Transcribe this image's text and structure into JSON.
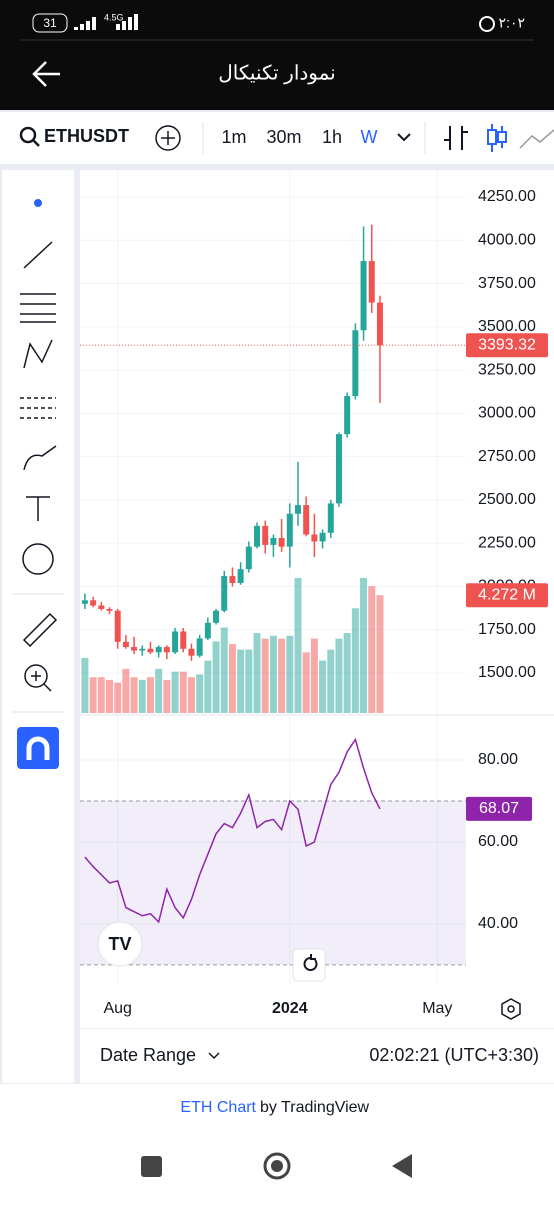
{
  "status_bar": {
    "battery": "31",
    "network": "4.5G",
    "time": "۲:۰۲"
  },
  "header": {
    "title": "نمودار تکنیکال"
  },
  "toolbar": {
    "symbol": "ETHUSDT",
    "intervals": [
      "1m",
      "30m",
      "1h",
      "W"
    ]
  },
  "chart_data": {
    "type": "candlestick",
    "xlim": [
      -0.6,
      46.5
    ],
    "xticks": [
      {
        "value": 4,
        "label": "Aug"
      },
      {
        "value": 25,
        "label": "2024"
      },
      {
        "value": 43,
        "label": "May"
      }
    ],
    "ylim": [
      1269,
      4406
    ],
    "yticks": [
      {
        "value": 1500,
        "label": "1500.00"
      },
      {
        "value": 1750,
        "label": "1750.00"
      },
      {
        "value": 2000,
        "label": "2000.00"
      },
      {
        "value": 2250,
        "label": "2250.00"
      },
      {
        "value": 2500,
        "label": "2500.00"
      },
      {
        "value": 2750,
        "label": "2750.00"
      },
      {
        "value": 3000,
        "label": "3000.00"
      },
      {
        "value": 3250,
        "label": "3250.00"
      },
      {
        "value": 3500,
        "label": "3500.00"
      },
      {
        "value": 3750,
        "label": "3750.00"
      },
      {
        "value": 4000,
        "label": "4000.00"
      },
      {
        "value": 4250,
        "label": "4250.00"
      }
    ],
    "grid": true,
    "up_color": "#26a69a",
    "down_color": "#ef5350",
    "open": [
      1900,
      1920,
      1890,
      1870,
      1860,
      1680,
      1650,
      1630,
      1640,
      1620,
      1650,
      1620,
      1740,
      1640,
      1600,
      1700,
      1790,
      1860,
      2060,
      2020,
      2100,
      2230,
      2350,
      2240,
      2280,
      2230,
      2420,
      2470,
      2300,
      2260,
      2310,
      2480,
      2880,
      3100,
      3480,
      3880,
      3640
    ],
    "high": [
      1960,
      1940,
      1910,
      1880,
      1870,
      1720,
      1710,
      1660,
      1680,
      1660,
      1660,
      1760,
      1760,
      1670,
      1720,
      1820,
      1870,
      2090,
      2110,
      2140,
      2260,
      2370,
      2380,
      2300,
      2390,
      2480,
      2720,
      2520,
      2420,
      2330,
      2500,
      2890,
      3120,
      3520,
      4080,
      4090,
      3680
    ],
    "low": [
      1870,
      1880,
      1860,
      1840,
      1640,
      1640,
      1610,
      1600,
      1610,
      1590,
      1580,
      1610,
      1620,
      1570,
      1590,
      1690,
      1780,
      1850,
      2000,
      2010,
      2080,
      2220,
      2190,
      2170,
      2200,
      2110,
      2350,
      2290,
      2170,
      2220,
      2280,
      2460,
      2860,
      3080,
      3420,
      3580,
      3060
    ],
    "close": [
      1920,
      1890,
      1870,
      1860,
      1680,
      1650,
      1630,
      1640,
      1620,
      1650,
      1620,
      1740,
      1640,
      1600,
      1700,
      1790,
      1860,
      2060,
      2020,
      2100,
      2230,
      2350,
      2240,
      2280,
      2230,
      2420,
      2470,
      2300,
      2260,
      2310,
      2480,
      2880,
      3100,
      3480,
      3880,
      3640,
      3393.32
    ],
    "close_label": "3393.32",
    "volume": {
      "ylim": [
        0,
        19.7
      ],
      "values": [
        2.0,
        1.3,
        1.3,
        1.2,
        1.1,
        1.6,
        1.3,
        1.2,
        1.3,
        1.6,
        1.2,
        1.5,
        1.5,
        1.3,
        1.4,
        1.9,
        2.6,
        3.1,
        2.5,
        2.3,
        2.3,
        2.9,
        2.7,
        2.8,
        2.7,
        2.8,
        4.9,
        2.2,
        2.7,
        1.9,
        2.3,
        2.7,
        2.9,
        3.8,
        4.9,
        4.6,
        4.272
      ],
      "value_label": "4.272 M"
    },
    "rsi": {
      "color": "#8e24aa",
      "ylim": [
        25.1,
        90.5
      ],
      "yticks": [
        {
          "value": 40,
          "label": "40.00"
        },
        {
          "value": 60,
          "label": "60.00"
        },
        {
          "value": 80,
          "label": "80.00"
        }
      ],
      "levels": [
        30,
        70
      ],
      "values": [
        56.3,
        54,
        52,
        50,
        50.5,
        44,
        43,
        42,
        42.5,
        40.5,
        48.5,
        44,
        41.5,
        46,
        52,
        57,
        62,
        64.5,
        63.5,
        67,
        71.5,
        63.5,
        65,
        65.5,
        63,
        70,
        68,
        59,
        60,
        67,
        74,
        77,
        82,
        85,
        78,
        72,
        68.07
      ],
      "value_label": "68.07"
    }
  },
  "bottom_bar": {
    "date_range": "Date Range",
    "clock": "02:02:21 (UTC+3:30)"
  },
  "footer": {
    "link": "ETH Chart",
    "by": "by TradingView"
  }
}
